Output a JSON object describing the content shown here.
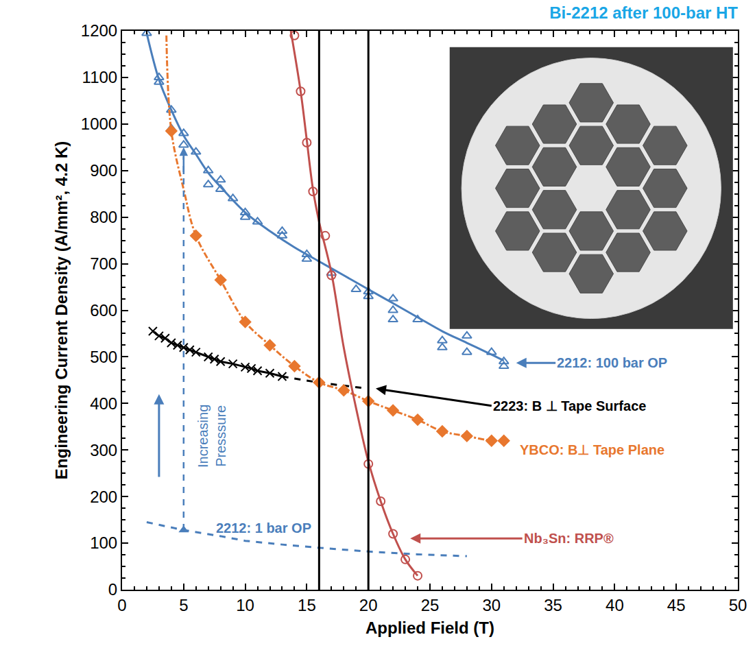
{
  "chart_data": {
    "type": "scatter",
    "title": "Bi-2212 after 100-bar HT",
    "x_label": "Applied Field (T)",
    "y_label": "Engineering Current Density (A/mm², 4.2 K)",
    "xlim": [
      0,
      50
    ],
    "ylim": [
      0,
      1200
    ],
    "xticks": [
      0,
      5,
      10,
      15,
      20,
      25,
      30,
      35,
      40,
      45,
      50
    ],
    "yticks": [
      0,
      100,
      200,
      300,
      400,
      500,
      600,
      700,
      800,
      900,
      1000,
      1100,
      1200
    ],
    "grid": false,
    "series": [
      {
        "name": "2212: 100 bar OP",
        "color": "#4a7ebb",
        "marker": "triangle-open",
        "x": [
          2,
          3,
          3,
          4,
          4,
          5,
          5,
          6,
          7,
          7,
          8,
          8,
          9,
          10,
          10,
          11,
          13,
          13,
          15,
          15,
          17,
          19,
          20,
          20,
          22,
          22,
          22,
          24,
          26,
          26,
          28,
          28,
          30,
          31,
          31
        ],
        "values": [
          1195,
          1090,
          1100,
          1030,
          990,
          980,
          955,
          940,
          900,
          870,
          880,
          860,
          840,
          810,
          800,
          790,
          770,
          760,
          720,
          710,
          680,
          645,
          640,
          630,
          625,
          600,
          580,
          580,
          535,
          520,
          545,
          510,
          510,
          490,
          480
        ],
        "fit": {
          "line_style": "solid",
          "x": [
            2,
            3,
            4,
            5,
            6,
            7,
            8,
            10,
            12,
            14,
            16,
            18,
            20,
            22,
            24,
            26,
            28,
            30,
            31
          ],
          "values": [
            1195,
            1095,
            1030,
            975,
            935,
            895,
            865,
            810,
            770,
            735,
            705,
            675,
            645,
            615,
            585,
            555,
            530,
            505,
            492
          ]
        }
      },
      {
        "name": "2223: B ⊥ Tape Surface",
        "color": "#000000",
        "marker": "x",
        "line_style": "solid",
        "x": [
          2.5,
          3,
          3.5,
          4,
          4.5,
          5,
          5.5,
          6,
          7,
          7.5,
          8,
          9,
          10,
          10.5,
          11,
          12,
          13
        ],
        "values": [
          555,
          545,
          540,
          530,
          525,
          520,
          515,
          510,
          500,
          495,
          490,
          485,
          478,
          475,
          470,
          465,
          458
        ],
        "fit": {
          "line_style": "dash",
          "x": [
            13,
            16,
            20
          ],
          "values": [
            458,
            445,
            432
          ]
        }
      },
      {
        "name": "YBCO: B⊥ Tape Plane",
        "color": "#e8772e",
        "marker": "diamond",
        "x": [
          4,
          6,
          8,
          10,
          12,
          14,
          16,
          18,
          20,
          22,
          24,
          26,
          28,
          30,
          31
        ],
        "values": [
          985,
          760,
          665,
          575,
          525,
          480,
          445,
          428,
          405,
          385,
          365,
          340,
          330,
          320,
          320
        ],
        "fit": {
          "line_style": "dashdot",
          "x": [
            3.6,
            4,
            5,
            6,
            8,
            10,
            12,
            14,
            16,
            18,
            20,
            22,
            24,
            26,
            28,
            30,
            31
          ],
          "values": [
            1190,
            985,
            860,
            760,
            665,
            575,
            525,
            480,
            445,
            428,
            405,
            385,
            365,
            340,
            330,
            320,
            320
          ]
        }
      },
      {
        "name": "2212: 1 bar OP",
        "color": "#4a7ebb",
        "line_style": "dash",
        "x": [
          2,
          5,
          8,
          10,
          13,
          16,
          20,
          24,
          28
        ],
        "values": [
          145,
          128,
          115,
          105,
          97,
          90,
          82,
          76,
          72
        ]
      },
      {
        "name": "Nb₃Sn: RRP®",
        "color": "#c0504d",
        "marker": "circle-open",
        "x": [
          14,
          14.5,
          15,
          15.5,
          16.5,
          17,
          20,
          21,
          22,
          23,
          24
        ],
        "values": [
          1190,
          1070,
          960,
          855,
          760,
          675,
          270,
          190,
          120,
          65,
          30
        ],
        "fit": {
          "line_style": "solid",
          "x": [
            13.7,
            14.5,
            15,
            15.5,
            16,
            17,
            18,
            19,
            20,
            21,
            22,
            23,
            24
          ],
          "values": [
            1200,
            1070,
            965,
            860,
            790,
            680,
            520,
            390,
            275,
            190,
            120,
            65,
            30
          ]
        }
      }
    ],
    "vertical_lines": [
      16,
      20
    ],
    "pressure_arrow": {
      "text": "Increasing Presssure",
      "x": 5,
      "from": 128,
      "to": 950
    }
  }
}
